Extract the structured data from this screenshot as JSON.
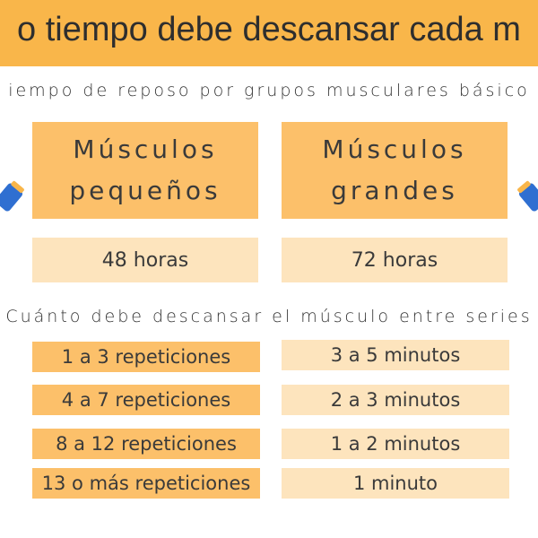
{
  "title": "o tiempo debe descansar cada m",
  "subtitle_rest": "iempo de reposo por grupos musculares básico",
  "cards": [
    {
      "label_line1": "Músculos",
      "label_line2": "pequeños",
      "hours": "48 horas"
    },
    {
      "label_line1": "Músculos",
      "label_line2": "grandes",
      "hours": "72 horas"
    }
  ],
  "subtitle_series": "Cuánto debe descansar el músculo entre series",
  "rows": [
    {
      "reps": "1 a 3 repeticiones",
      "rest": "3 a 5 minutos"
    },
    {
      "reps": "4 a 7 repeticiones",
      "rest": "2 a 3 minutos"
    },
    {
      "reps": "8 a 12 repeticiones",
      "rest": "1 a 2 minutos"
    },
    {
      "reps": "13 o más repeticiones",
      "rest": "1 minuto"
    }
  ],
  "colors": {
    "title_bg": "#f9b64a",
    "box_dark": "#fcc06a",
    "box_light": "#fde4bd",
    "icon_blue": "#2f6fd1"
  },
  "icons": [
    "dumbbell-icon-left",
    "dumbbell-icon-right"
  ]
}
